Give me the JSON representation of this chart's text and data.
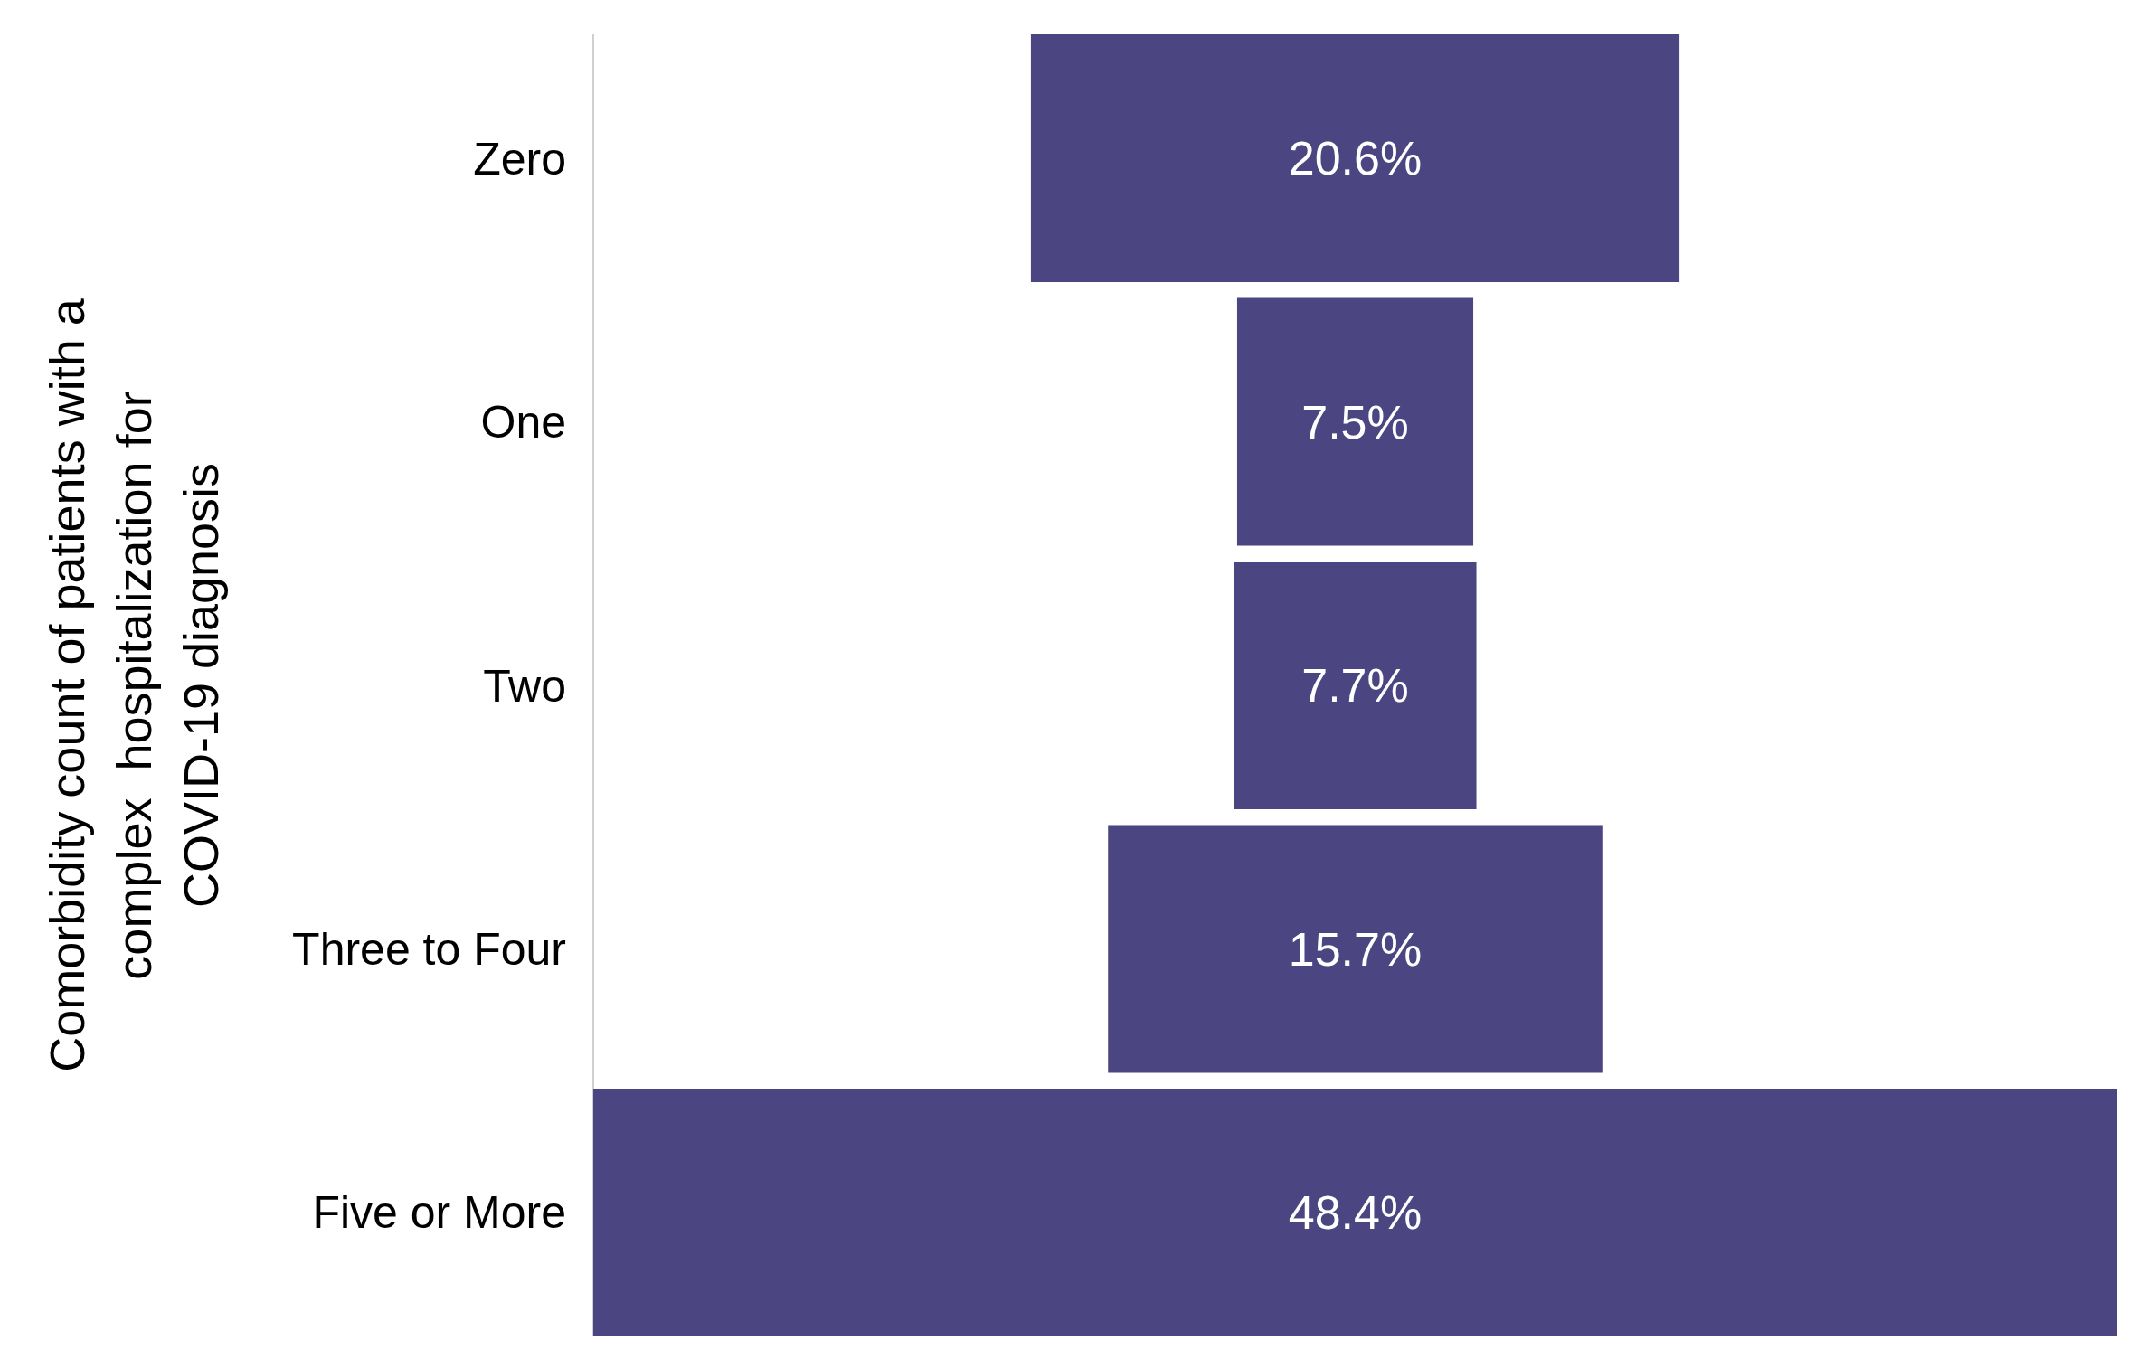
{
  "chart_data": {
    "type": "other",
    "ylabel": "Comorbidity count of patients with a\ncomplex  hospitalization for\nCOVID-19 diagnosis",
    "categories": [
      "Zero",
      "One",
      "Two",
      "Three to Four",
      "Five or More"
    ],
    "values": [
      20.6,
      7.5,
      7.7,
      15.7,
      48.4
    ],
    "value_labels": [
      "20.6%",
      "7.5%",
      "7.7%",
      "15.7%",
      "48.4%"
    ],
    "color": "#4b4582"
  }
}
